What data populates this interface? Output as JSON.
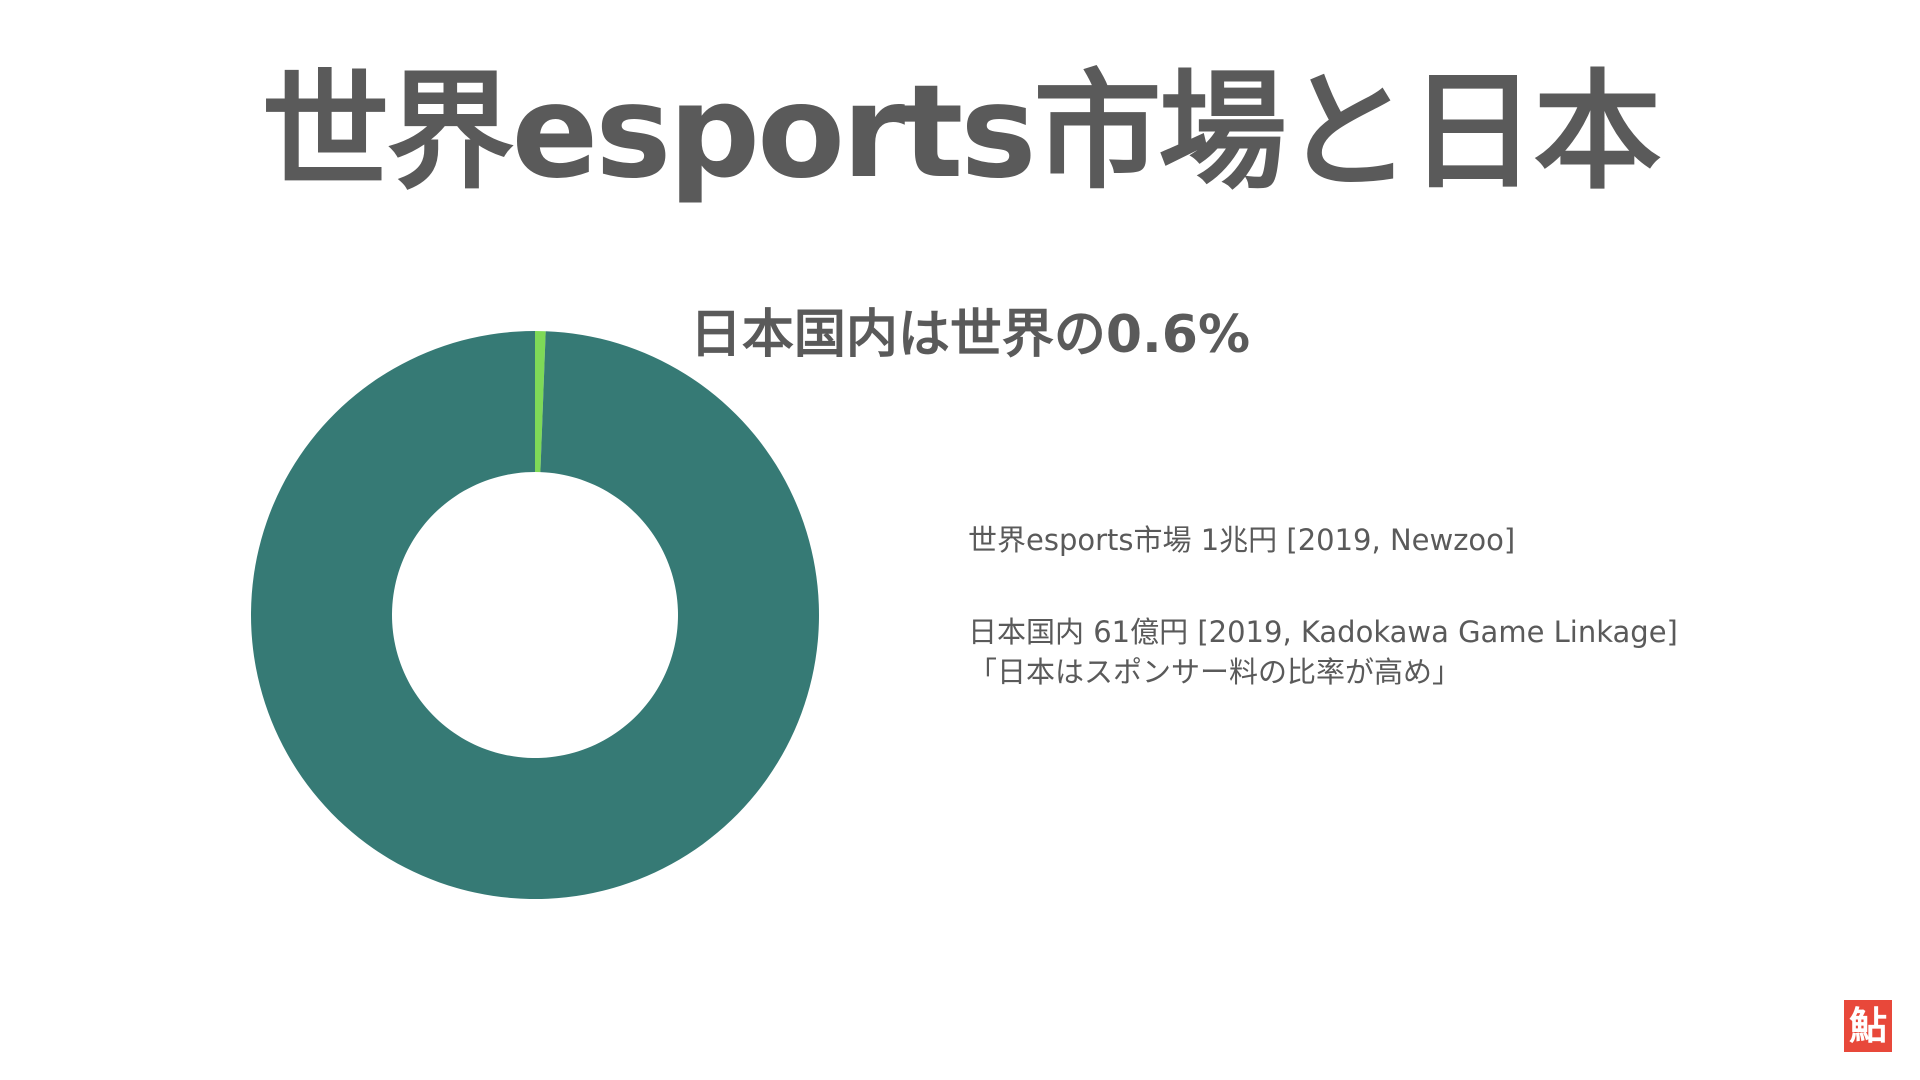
{
  "slide": {
    "title": "世界esports市場と日本"
  },
  "chart_data": {
    "type": "pie",
    "donut": true,
    "title": "日本国内は世界の0.6%",
    "series": [
      {
        "values": [
          0.6,
          99.4
        ],
        "colors": [
          "#7ed957",
          "#367a75"
        ]
      }
    ],
    "start_angle_deg": 0,
    "legend": "none"
  },
  "notes": {
    "world_market": "世界esports市場 1兆円 [2019, Newzoo]",
    "japan_market": "日本国内 61億円 [2019, Kadokawa Game Linkage]",
    "japan_comment": "「日本はスポンサー料の比率が高め」"
  },
  "logo": {
    "text": "鮎",
    "color": "#e8483a"
  }
}
